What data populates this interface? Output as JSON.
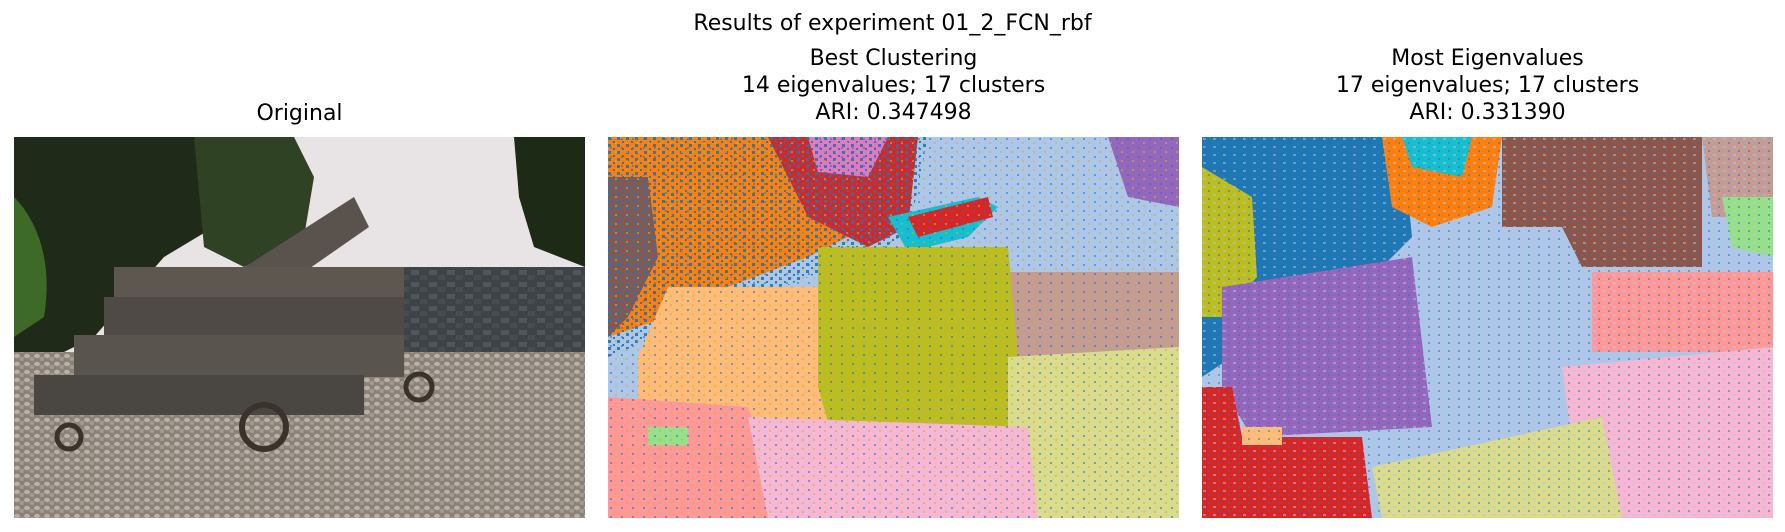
{
  "figure": {
    "suptitle": "Results of experiment 01_2_FCN_rbf",
    "panels": [
      {
        "title": "Original"
      },
      {
        "title": "Best Clustering",
        "line2": "14 eigenvalues; 17 clusters",
        "line3": "ARI: 0.347498"
      },
      {
        "title": "Most Eigenvalues",
        "line2": "17 eigenvalues; 17 clusters",
        "line3": "ARI: 0.331390"
      }
    ]
  },
  "palette": {
    "blue": "#1f77b4",
    "lightblue": "#aec7e8",
    "orange": "#ff7f0e",
    "peach": "#ffbb78",
    "olive": "#bcbd22",
    "khaki": "#dbdb8d",
    "salmon": "#ff9896",
    "pink": "#f7b6d2",
    "red": "#d62728",
    "purple": "#9467bd",
    "brown": "#8c564b",
    "tan": "#c49c94",
    "magenta": "#e377c2",
    "cyan": "#17becf",
    "lightgreen": "#98df8a"
  }
}
